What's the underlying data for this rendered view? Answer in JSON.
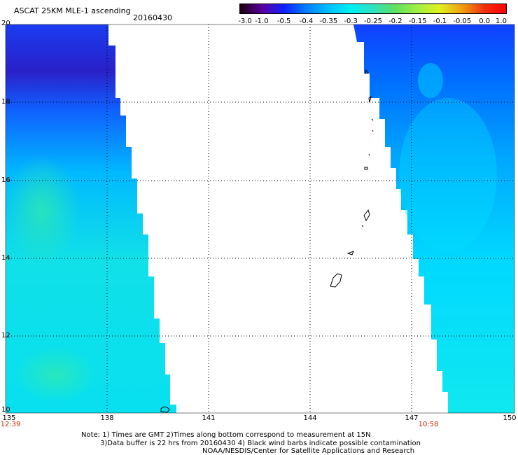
{
  "header": {
    "title": "ASCAT 25KM MLE-1 ascending",
    "date": "20160430"
  },
  "colorbar": {
    "ticks": [
      "-3.0",
      "-1.0",
      "-0.5",
      "-0.4",
      "-0.35",
      "-0.3",
      "-0.25",
      "-0.2",
      "-0.15",
      "-0.1",
      "-0.05",
      "0.0",
      "1.0"
    ],
    "colors": [
      "#1a0010",
      "#5a00a0",
      "#1020ff",
      "#0080ff",
      "#00c0ff",
      "#00f0f0",
      "#30e0c0",
      "#60e060",
      "#a0f040",
      "#e0f020",
      "#f0a010",
      "#f03010",
      "#ff0000"
    ]
  },
  "map": {
    "lat_labels": [
      "20",
      "18",
      "16",
      "14",
      "12",
      "10"
    ],
    "lon_labels": [
      "135",
      "138",
      "141",
      "144",
      "147",
      "150"
    ],
    "time_left": "12:39",
    "time_right": "10:58"
  },
  "footer": {
    "note_line1": "Note: 1) Times are GMT 2)Times along bottom correspond to measurement at 15N",
    "note_line2": "3)Data buffer is 22 hrs from 20160430 4) Black wind barbs indicate possible contamination",
    "note_line3": "NOAA/NESDIS/Center for Satellite Applications and Research"
  }
}
